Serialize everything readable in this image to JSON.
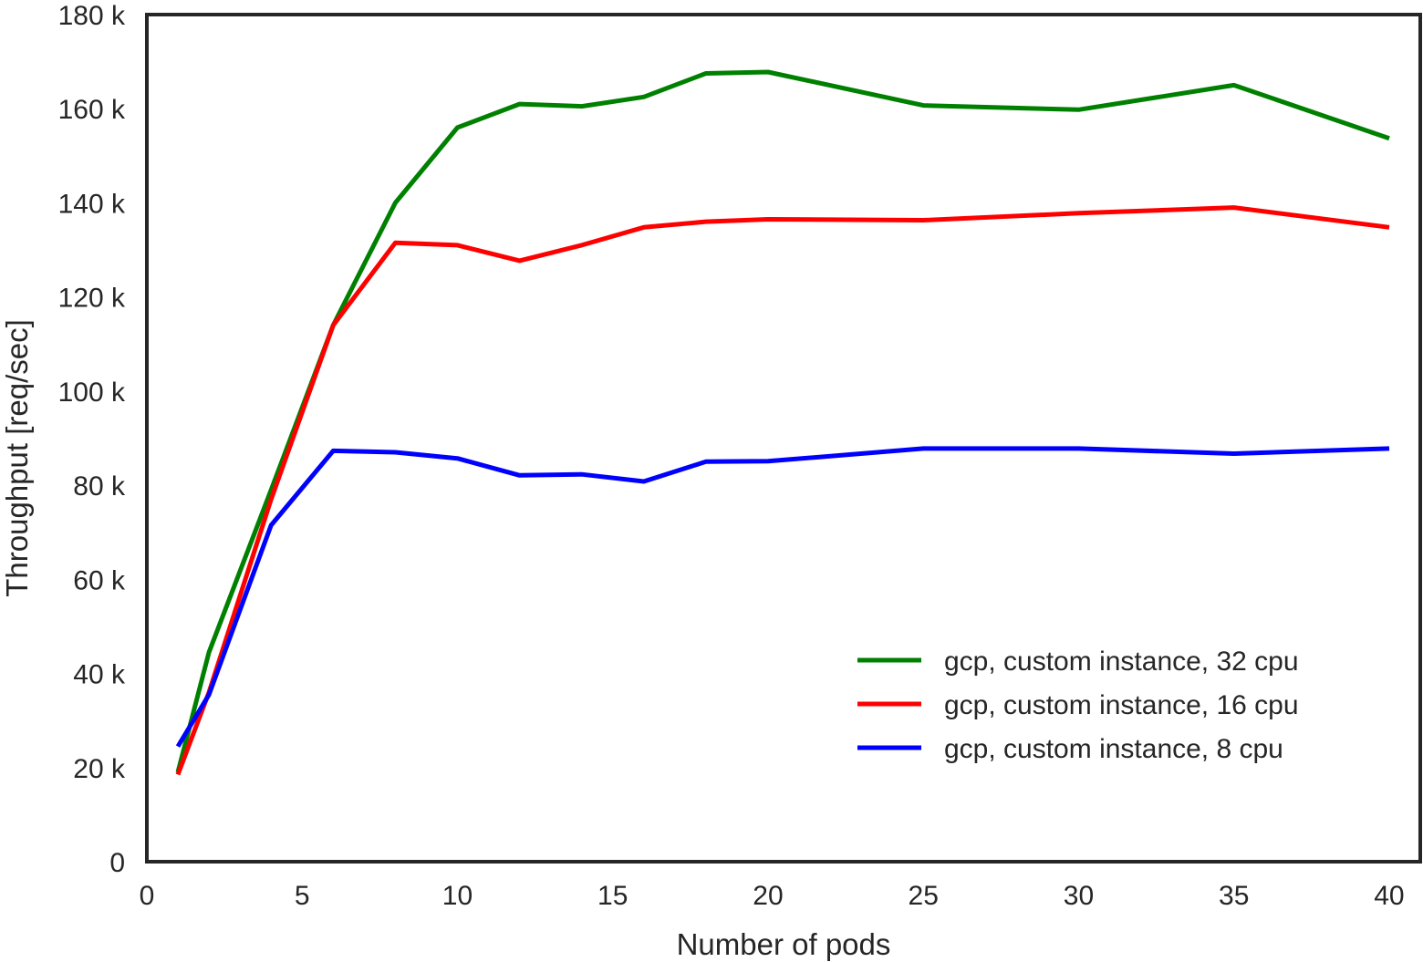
{
  "chart_data": {
    "type": "line",
    "xlabel": "Number of pods",
    "ylabel": "Throughput [req/sec]",
    "xlim": [
      0,
      41
    ],
    "ylim": [
      0,
      180000
    ],
    "grid": false,
    "legend_position": "lower-right",
    "x_ticks": [
      {
        "value": 0,
        "label": "0"
      },
      {
        "value": 5,
        "label": "5"
      },
      {
        "value": 10,
        "label": "10"
      },
      {
        "value": 15,
        "label": "15"
      },
      {
        "value": 20,
        "label": "20"
      },
      {
        "value": 25,
        "label": "25"
      },
      {
        "value": 30,
        "label": "30"
      },
      {
        "value": 35,
        "label": "35"
      },
      {
        "value": 40,
        "label": "40"
      }
    ],
    "y_ticks": [
      {
        "value": 0,
        "label": "0"
      },
      {
        "value": 20000,
        "label": "20 k"
      },
      {
        "value": 40000,
        "label": "40 k"
      },
      {
        "value": 60000,
        "label": "60 k"
      },
      {
        "value": 80000,
        "label": "80 k"
      },
      {
        "value": 100000,
        "label": "100 k"
      },
      {
        "value": 120000,
        "label": "120 k"
      },
      {
        "value": 140000,
        "label": "140 k"
      },
      {
        "value": 160000,
        "label": "160 k"
      },
      {
        "value": 180000,
        "label": "180 k"
      }
    ],
    "x": [
      1,
      2,
      4,
      6,
      8,
      10,
      12,
      14,
      16,
      18,
      20,
      25,
      30,
      35,
      40
    ],
    "series": [
      {
        "name": "gcp, custom instance, 32 cpu",
        "color": "#008000",
        "values": [
          19000,
          44500,
          79000,
          114000,
          140000,
          156000,
          161000,
          160500,
          162500,
          167500,
          167800,
          160700,
          159800,
          165000,
          153700
        ]
      },
      {
        "name": "gcp, custom instance, 16 cpu",
        "color": "#ff0000",
        "values": [
          18500,
          36000,
          77000,
          114000,
          131500,
          131000,
          127700,
          131000,
          134800,
          136000,
          136500,
          136300,
          137800,
          139000,
          134800
        ]
      },
      {
        "name": "gcp, custom instance, 8 cpu",
        "color": "#0000ff",
        "values": [
          24500,
          35500,
          71500,
          87300,
          87000,
          85700,
          82100,
          82300,
          80800,
          85000,
          85100,
          87800,
          87800,
          86700,
          87800
        ]
      }
    ]
  }
}
